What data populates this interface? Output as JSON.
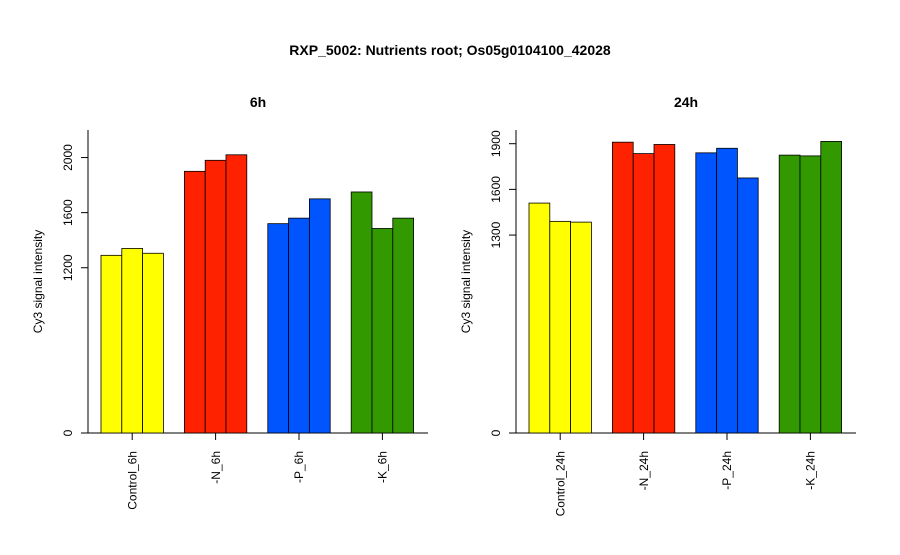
{
  "figure": {
    "title": "RXP_5002: Nutrients root; Os05g0104100_42028"
  },
  "chart_data": [
    {
      "type": "bar",
      "title": "6h",
      "ylabel": "Cy3 signal intensity",
      "xlabel": "",
      "ylim": [
        0,
        2200
      ],
      "yticks": [
        0,
        1200,
        1600,
        2000
      ],
      "categories": [
        "Control_6h",
        "-N_6h",
        "-P_6h",
        "-K_6h"
      ],
      "colors": [
        "#ffff00",
        "#ff2200",
        "#0055ff",
        "#339900"
      ],
      "values": [
        [
          1290,
          1340,
          1305
        ],
        [
          1900,
          1980,
          2020
        ],
        [
          1520,
          1560,
          1700
        ],
        [
          1750,
          1485,
          1560
        ]
      ],
      "grid": false
    },
    {
      "type": "bar",
      "title": "24h",
      "ylabel": "Cy3 signal intensity",
      "xlabel": "",
      "ylim": [
        0,
        1990
      ],
      "yticks": [
        0,
        1300,
        1600,
        1900
      ],
      "categories": [
        "Control_24h",
        "-N_24h",
        "-P_24h",
        "-K_24h"
      ],
      "colors": [
        "#ffff00",
        "#ff2200",
        "#0055ff",
        "#339900"
      ],
      "values": [
        [
          1510,
          1390,
          1385
        ],
        [
          1910,
          1835,
          1895
        ],
        [
          1840,
          1870,
          1675
        ],
        [
          1825,
          1820,
          1915
        ]
      ],
      "grid": false
    }
  ]
}
